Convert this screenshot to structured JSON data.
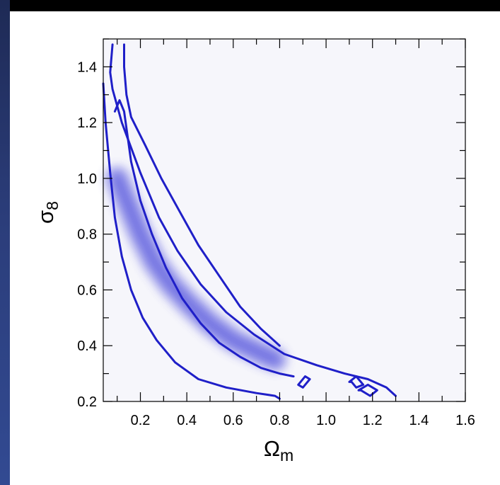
{
  "colors": {
    "contour": "#1f1fc8",
    "density": "#3a3ad8",
    "frame": "#000000",
    "plot_bg": "#f6f6fb"
  },
  "chart_data": {
    "type": "contour",
    "xlabel": "Ω",
    "xlabel_sub": "m",
    "ylabel": "σ",
    "ylabel_sub": "8",
    "xlim": [
      0.04,
      1.6
    ],
    "ylim": [
      0.2,
      1.5
    ],
    "xticks": [
      "0.2",
      "0.4",
      "0.6",
      "0.8",
      "1.0",
      "1.2",
      "1.4",
      "1.6"
    ],
    "yticks": [
      "0.2",
      "0.4",
      "0.6",
      "0.8",
      "1.0",
      "1.2",
      "1.4"
    ],
    "grid": false,
    "contours": [
      {
        "level": "inner",
        "x": [
          0.04,
          0.05,
          0.07,
          0.09,
          0.12,
          0.16,
          0.21,
          0.27,
          0.35,
          0.45,
          0.57,
          0.7,
          0.78,
          0.8
        ],
        "y": [
          1.34,
          1.2,
          1.02,
          0.86,
          0.72,
          0.6,
          0.5,
          0.42,
          0.34,
          0.28,
          0.25,
          0.23,
          0.22,
          0.21
        ]
      },
      {
        "level": "inner",
        "x": [
          0.09,
          0.11,
          0.13,
          0.16,
          0.2,
          0.25,
          0.31,
          0.38,
          0.46,
          0.54,
          0.63,
          0.72,
          0.8,
          0.86
        ],
        "y": [
          1.24,
          1.28,
          1.24,
          1.06,
          0.92,
          0.8,
          0.68,
          0.57,
          0.48,
          0.41,
          0.36,
          0.32,
          0.3,
          0.29
        ]
      },
      {
        "level": "outer",
        "x": [
          0.08,
          0.07,
          0.08,
          0.12,
          0.2,
          0.28,
          0.36,
          0.46,
          0.57,
          0.69,
          0.82,
          0.96,
          1.08,
          1.18,
          1.26,
          1.3
        ],
        "y": [
          1.48,
          1.38,
          1.32,
          1.2,
          1.02,
          0.86,
          0.74,
          0.62,
          0.52,
          0.44,
          0.37,
          0.33,
          0.3,
          0.28,
          0.25,
          0.22
        ]
      },
      {
        "level": "outer",
        "x": [
          0.13,
          0.13,
          0.14,
          0.16,
          0.22,
          0.29,
          0.37,
          0.45,
          0.54,
          0.63,
          0.72,
          0.8
        ],
        "y": [
          1.48,
          1.4,
          1.3,
          1.22,
          1.12,
          1.0,
          0.88,
          0.76,
          0.65,
          0.54,
          0.46,
          0.4
        ]
      }
    ],
    "islands": [
      {
        "x": [
          0.88,
          0.91,
          0.93,
          0.9,
          0.88
        ],
        "y": [
          0.26,
          0.29,
          0.28,
          0.25,
          0.26
        ]
      },
      {
        "x": [
          1.1,
          1.13,
          1.16,
          1.13,
          1.11
        ],
        "y": [
          0.27,
          0.29,
          0.26,
          0.25,
          0.27
        ]
      },
      {
        "x": [
          1.14,
          1.18,
          1.22,
          1.19,
          1.15
        ],
        "y": [
          0.24,
          0.26,
          0.24,
          0.22,
          0.24
        ]
      }
    ],
    "density_ridge": {
      "x": [
        0.1,
        0.15,
        0.2,
        0.26,
        0.33,
        0.41,
        0.5,
        0.6,
        0.7,
        0.78
      ],
      "y": [
        1.0,
        0.9,
        0.8,
        0.7,
        0.62,
        0.55,
        0.48,
        0.42,
        0.38,
        0.35
      ]
    }
  }
}
